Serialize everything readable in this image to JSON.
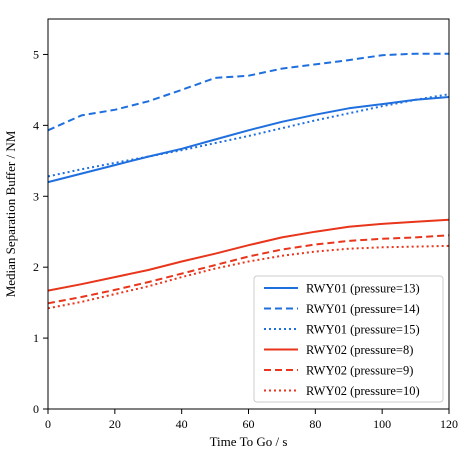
{
  "chart_data": {
    "type": "line",
    "title": "",
    "xlabel": "Time To Go / s",
    "ylabel": "Median Separation Buffer / NM",
    "xlim": [
      0,
      120
    ],
    "ylim": [
      0,
      5.5
    ],
    "xticks": [
      0,
      20,
      40,
      60,
      80,
      100,
      120
    ],
    "yticks": [
      0,
      1,
      2,
      3,
      4,
      5
    ],
    "grid": false,
    "legend_position": "lower-right",
    "colors": {
      "RWY01": "#1f6fde",
      "RWY02": "#e8351b"
    },
    "x": [
      0,
      10,
      20,
      30,
      40,
      50,
      60,
      70,
      80,
      90,
      100,
      110,
      120
    ],
    "series": [
      {
        "name": "RWY01 (pressure=13)",
        "style": "solid",
        "color": "#1f6fde",
        "values": [
          3.2,
          3.32,
          3.44,
          3.56,
          3.67,
          3.8,
          3.93,
          4.05,
          4.15,
          4.24,
          4.3,
          4.36,
          4.4
        ]
      },
      {
        "name": "RWY01 (pressure=14)",
        "style": "dashed",
        "color": "#1f6fde",
        "values": [
          3.93,
          4.14,
          4.22,
          4.34,
          4.5,
          4.67,
          4.7,
          4.8,
          4.86,
          4.92,
          4.99,
          5.01,
          5.01
        ]
      },
      {
        "name": "RWY01 (pressure=15)",
        "style": "dotted",
        "color": "#1f6fde",
        "values": [
          3.28,
          3.38,
          3.47,
          3.56,
          3.65,
          3.75,
          3.85,
          3.96,
          4.07,
          4.17,
          4.27,
          4.36,
          4.44
        ]
      },
      {
        "name": "RWY02 (pressure=8)",
        "style": "solid",
        "color": "#e8351b",
        "values": [
          1.67,
          1.76,
          1.86,
          1.96,
          2.08,
          2.19,
          2.31,
          2.42,
          2.5,
          2.57,
          2.61,
          2.64,
          2.67
        ]
      },
      {
        "name": "RWY02 (pressure=9)",
        "style": "dashed",
        "color": "#e8351b",
        "values": [
          1.49,
          1.58,
          1.68,
          1.79,
          1.91,
          2.03,
          2.15,
          2.25,
          2.32,
          2.37,
          2.4,
          2.42,
          2.45
        ]
      },
      {
        "name": "RWY02 (pressure=10)",
        "style": "dotted",
        "color": "#e8351b",
        "values": [
          1.42,
          1.51,
          1.62,
          1.73,
          1.86,
          1.98,
          2.08,
          2.16,
          2.22,
          2.26,
          2.28,
          2.29,
          2.3
        ]
      }
    ]
  }
}
